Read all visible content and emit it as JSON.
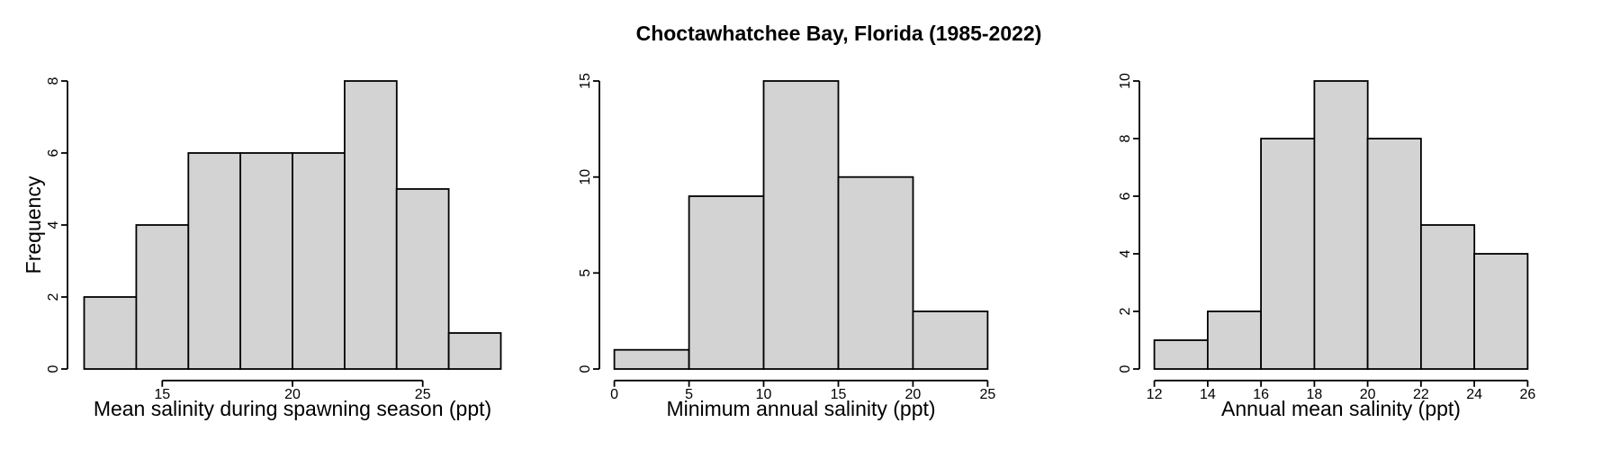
{
  "title": "Choctawhatchee Bay, Florida (1985-2022)",
  "colors": {
    "background": "#ffffff",
    "bar_fill": "#d3d3d3",
    "bar_stroke": "#000000",
    "axis": "#000000",
    "text": "#000000"
  },
  "chart_data": [
    {
      "type": "bar",
      "subtype": "histogram",
      "title": "",
      "xlabel": "Mean salinity during spawning season (ppt)",
      "ylabel": "Frequency",
      "bin_start": 12,
      "bin_width": 2,
      "bin_edges": [
        12,
        14,
        16,
        18,
        20,
        22,
        24,
        26,
        28
      ],
      "values": [
        2,
        4,
        6,
        6,
        6,
        8,
        5,
        1
      ],
      "x_ticks": [
        15,
        20,
        25
      ],
      "y_ticks": [
        0,
        2,
        4,
        6,
        8
      ],
      "xlim": [
        12,
        28
      ],
      "ylim": [
        0,
        8
      ],
      "grid": false,
      "legend": false
    },
    {
      "type": "bar",
      "subtype": "histogram",
      "title": "",
      "xlabel": "Minimum annual salinity (ppt)",
      "ylabel": "",
      "bin_start": 0,
      "bin_width": 5,
      "bin_edges": [
        0,
        5,
        10,
        15,
        20,
        25
      ],
      "values": [
        1,
        9,
        15,
        10,
        3
      ],
      "x_ticks": [
        0,
        5,
        10,
        15,
        20,
        25
      ],
      "y_ticks": [
        0,
        5,
        10,
        15
      ],
      "xlim": [
        0,
        25
      ],
      "ylim": [
        0,
        15
      ],
      "grid": false,
      "legend": false
    },
    {
      "type": "bar",
      "subtype": "histogram",
      "title": "",
      "xlabel": "Annual mean salinity (ppt)",
      "ylabel": "",
      "bin_start": 12,
      "bin_width": 2,
      "bin_edges": [
        12,
        14,
        16,
        18,
        20,
        22,
        24,
        26
      ],
      "values": [
        1,
        2,
        8,
        10,
        8,
        5,
        4
      ],
      "x_ticks": [
        12,
        14,
        16,
        18,
        20,
        22,
        24,
        26
      ],
      "y_ticks": [
        0,
        2,
        4,
        6,
        8,
        10
      ],
      "xlim": [
        12,
        26
      ],
      "ylim": [
        0,
        10
      ],
      "grid": false,
      "legend": false
    }
  ]
}
